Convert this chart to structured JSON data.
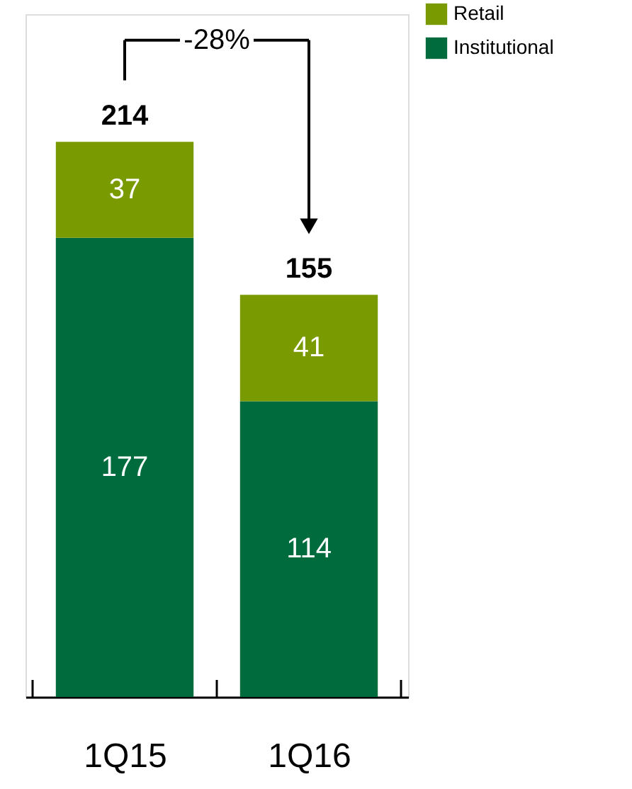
{
  "chart_data": {
    "type": "bar",
    "stacked": true,
    "categories": [
      "1Q15",
      "1Q16"
    ],
    "series": [
      {
        "name": "Institutional",
        "color": "#006b3c",
        "values": [
          177,
          114
        ]
      },
      {
        "name": "Retail",
        "color": "#7a9a01",
        "values": [
          37,
          41
        ]
      }
    ],
    "data_labels": true,
    "totals": [
      "214",
      "155"
    ],
    "annotations": [
      "-28%"
    ],
    "legend": "top right",
    "grid": false
  }
}
